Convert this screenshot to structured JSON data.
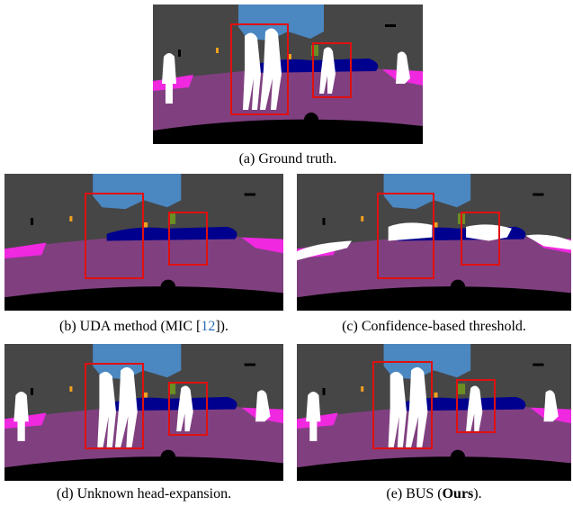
{
  "figure": {
    "panels": [
      {
        "caption": [
          "(a) Ground truth."
        ]
      },
      {
        "caption": [
          "(b) UDA method (MIC [",
          "12",
          "])."
        ]
      },
      {
        "caption": [
          "(c) Confidence-based threshold."
        ]
      },
      {
        "caption": [
          "(d) Unknown head-expansion."
        ]
      },
      {
        "caption": [
          "(e) BUS (",
          "Ours",
          ")."
        ]
      }
    ]
  }
}
